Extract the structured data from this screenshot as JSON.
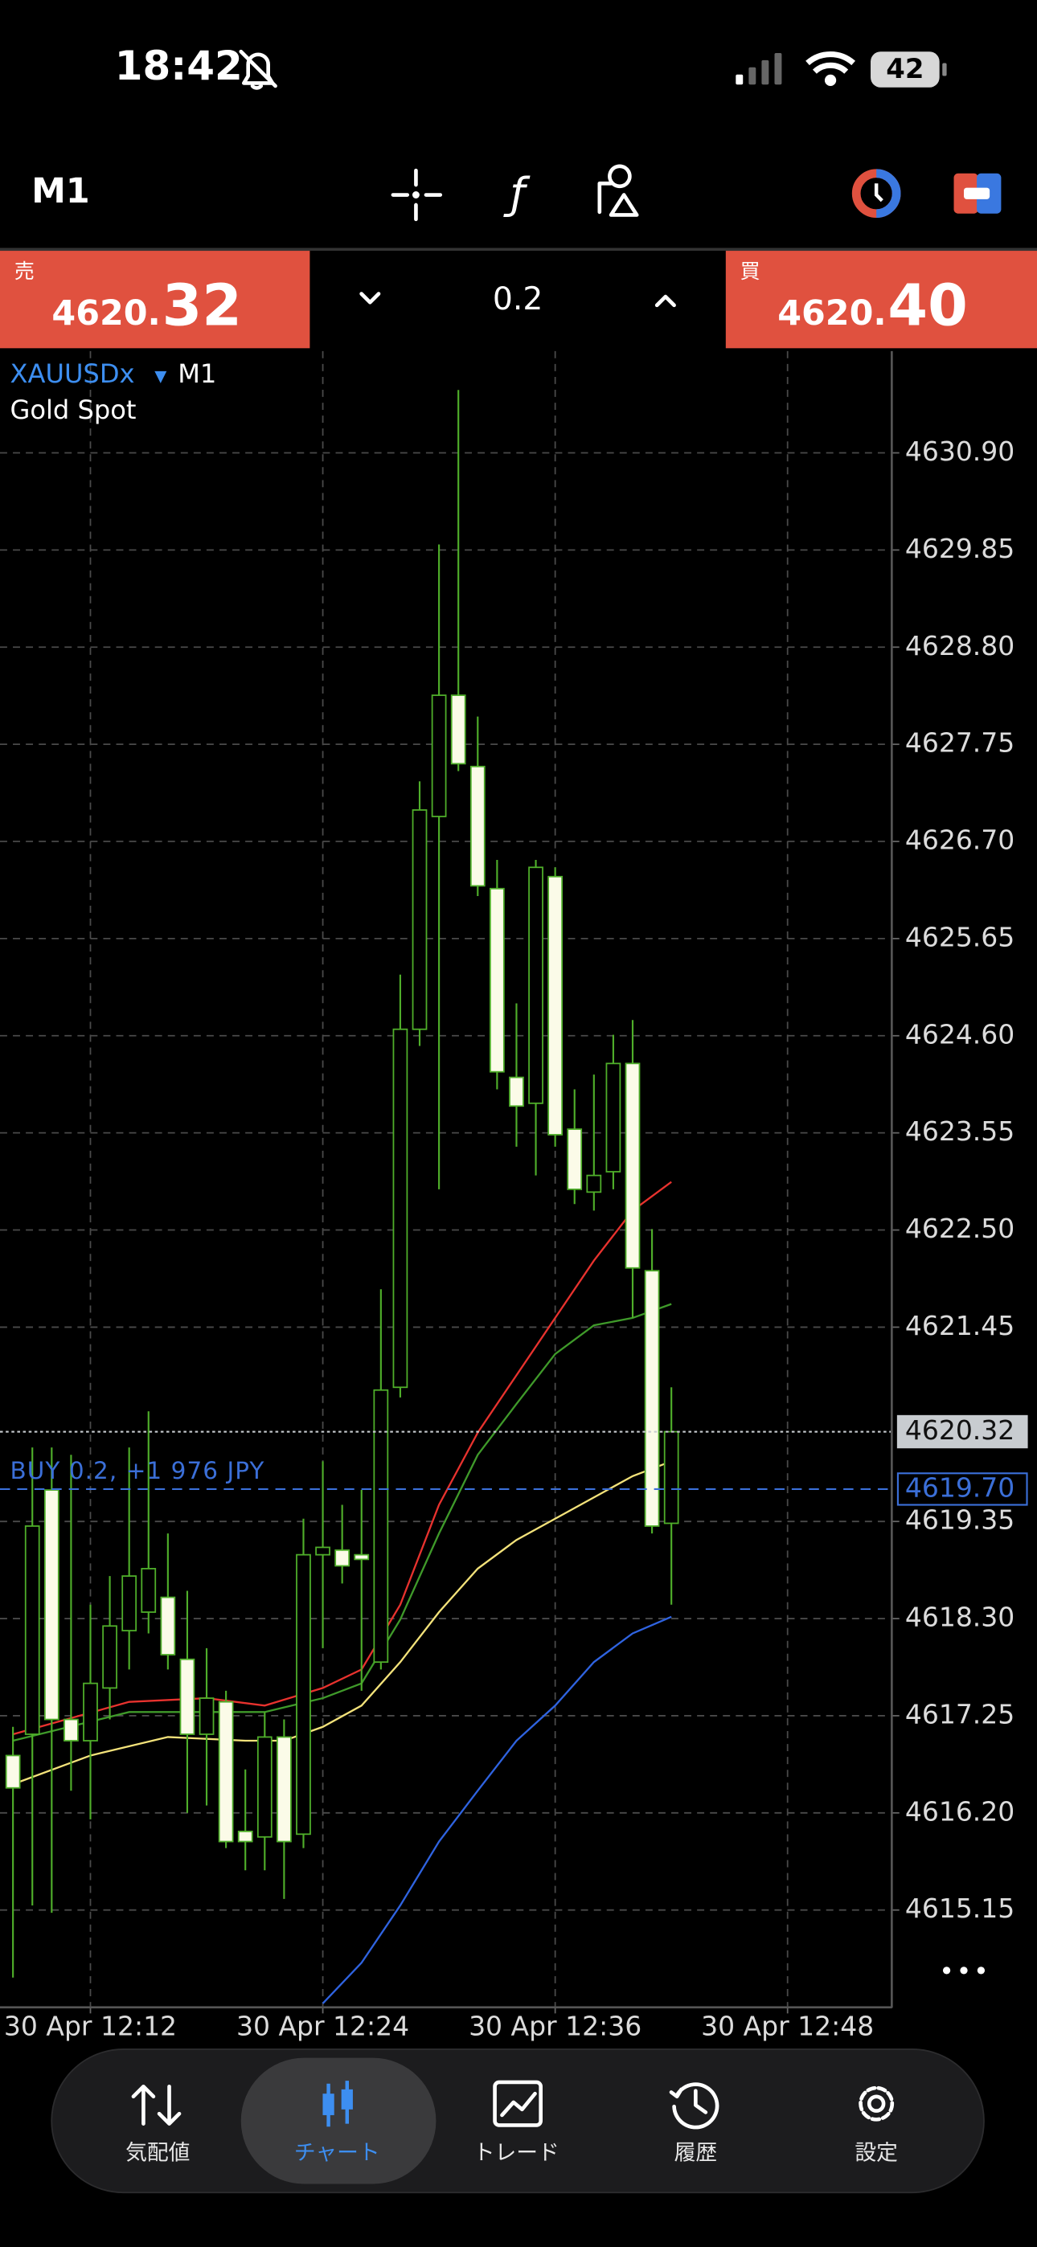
{
  "status_bar": {
    "time": "18:42",
    "battery": "42"
  },
  "toolbar": {
    "timeframe": "M1"
  },
  "trade_panel": {
    "sell_label": "売",
    "sell_price_main": "4620.",
    "sell_price_big": "32",
    "volume": "0.2",
    "buy_label": "買",
    "buy_price_main": "4620.",
    "buy_price_big": "40"
  },
  "chart_data": {
    "type": "candlestick",
    "symbol": "XAUUSDx",
    "timeframe": "M1",
    "description": "Gold Spot",
    "x": [
      8,
      9,
      10,
      11,
      12,
      13,
      14,
      15,
      16,
      17,
      18,
      19,
      20,
      21,
      22,
      23,
      24,
      25,
      26,
      27,
      28,
      29,
      30,
      31,
      32,
      33,
      34,
      35,
      36,
      37,
      38,
      39,
      40,
      41,
      42
    ],
    "open": [
      4616.82,
      4617.05,
      4619.69,
      4617.21,
      4616.98,
      4617.55,
      4618.17,
      4618.37,
      4618.53,
      4617.86,
      4617.05,
      4617.4,
      4616.0,
      4615.94,
      4617.02,
      4615.97,
      4618.99,
      4619.04,
      4618.99,
      4617.83,
      4620.8,
      4624.67,
      4626.97,
      4628.28,
      4627.51,
      4626.19,
      4624.15,
      4623.87,
      4626.32,
      4623.59,
      4622.91,
      4623.13,
      4624.3,
      4622.06,
      4619.33
    ],
    "high": [
      4617.13,
      4620.15,
      4620.15,
      4620.07,
      4618.45,
      4618.76,
      4620.15,
      4620.54,
      4619.22,
      4618.6,
      4617.98,
      4617.52,
      4616.67,
      4617.29,
      4617.21,
      4619.38,
      4620.0,
      4619.53,
      4619.69,
      4621.86,
      4625.26,
      4627.35,
      4629.91,
      4631.58,
      4628.05,
      4626.5,
      4624.95,
      4626.5,
      4626.42,
      4624.02,
      4624.18,
      4624.61,
      4624.77,
      4622.51,
      4620.8
    ],
    "low": [
      4614.42,
      4615.2,
      4615.12,
      4616.44,
      4616.13,
      4617.21,
      4617.75,
      4618.14,
      4617.75,
      4616.2,
      4616.28,
      4615.82,
      4615.58,
      4615.58,
      4615.27,
      4615.82,
      4617.98,
      4618.68,
      4617.52,
      4617.75,
      4620.69,
      4624.49,
      4622.94,
      4627.46,
      4626.11,
      4624.02,
      4623.4,
      4623.09,
      4623.4,
      4622.78,
      4622.71,
      4622.94,
      4621.55,
      4619.22,
      4618.45
    ],
    "close": [
      4616.47,
      4619.3,
      4617.21,
      4616.98,
      4617.6,
      4618.22,
      4618.76,
      4618.84,
      4617.91,
      4617.05,
      4617.44,
      4615.89,
      4615.89,
      4617.02,
      4615.89,
      4618.99,
      4619.07,
      4618.87,
      4618.94,
      4620.77,
      4624.67,
      4627.04,
      4628.28,
      4627.54,
      4626.22,
      4624.21,
      4623.84,
      4626.42,
      4623.53,
      4622.94,
      4623.09,
      4624.3,
      4622.09,
      4619.3,
      4620.32
    ],
    "wick_color": "#4fae2a",
    "bull_fill": "#000000",
    "bear_fill": "#fbfbe8",
    "series": [
      {
        "color": "#e8322e",
        "x": [
          8,
          14,
          18,
          21,
          24,
          26,
          28,
          30,
          32,
          34,
          36,
          38,
          40,
          42
        ],
        "values": [
          4617.05,
          4617.4,
          4617.44,
          4617.36,
          4617.55,
          4617.75,
          4618.45,
          4619.53,
          4620.31,
          4620.93,
          4621.55,
          4622.17,
          4622.71,
          4623.02
        ]
      },
      {
        "color": "#3f9a2a",
        "x": [
          8,
          14,
          18,
          21,
          24,
          26,
          28,
          30,
          32,
          34,
          36,
          38,
          40,
          42
        ],
        "values": [
          4616.98,
          4617.29,
          4617.29,
          4617.29,
          4617.44,
          4617.6,
          4618.29,
          4619.22,
          4620.07,
          4620.62,
          4621.16,
          4621.47,
          4621.55,
          4621.7
        ]
      },
      {
        "color": "#f3e27a",
        "x": [
          8,
          12,
          16,
          20,
          22,
          24,
          26,
          28,
          30,
          32,
          34,
          36,
          38,
          40,
          42
        ],
        "values": [
          4616.51,
          4616.82,
          4617.02,
          4616.98,
          4616.98,
          4617.13,
          4617.36,
          4617.83,
          4618.37,
          4618.84,
          4619.15,
          4619.38,
          4619.61,
          4619.84,
          4620.0
        ]
      },
      {
        "color": "#2f63e0",
        "x": [
          24,
          26,
          28,
          30,
          32,
          34,
          36,
          38,
          40,
          42
        ],
        "values": [
          4614.14,
          4614.58,
          4615.2,
          4615.89,
          4616.44,
          4616.98,
          4617.36,
          4617.83,
          4618.14,
          4618.32
        ]
      }
    ],
    "price_lines": [
      {
        "value": 4620.32,
        "label": "4620.32",
        "color": "#c8ccd0"
      },
      {
        "value": 4619.7,
        "label": "4619.70",
        "text": "BUY 0.2, +1 976 JPY",
        "color": "#3b6fd8"
      }
    ],
    "xlim": [
      7.33,
      53.4
    ],
    "ylim": [
      4614.11,
      4632.0
    ],
    "xticks": [
      {
        "value": 12,
        "label": "30 Apr 12:12"
      },
      {
        "value": 24,
        "label": "30 Apr 12:24"
      },
      {
        "value": 36,
        "label": "30 Apr 12:36"
      },
      {
        "value": 48,
        "label": "30 Apr 12:48"
      }
    ],
    "yticks": [
      {
        "value": 4630.9,
        "label": "4630.90"
      },
      {
        "value": 4629.85,
        "label": "4629.85"
      },
      {
        "value": 4628.8,
        "label": "4628.80"
      },
      {
        "value": 4627.75,
        "label": "4627.75"
      },
      {
        "value": 4626.7,
        "label": "4626.70"
      },
      {
        "value": 4625.65,
        "label": "4625.65"
      },
      {
        "value": 4624.6,
        "label": "4624.60"
      },
      {
        "value": 4623.55,
        "label": "4623.55"
      },
      {
        "value": 4622.5,
        "label": "4622.50"
      },
      {
        "value": 4621.45,
        "label": "4621.45"
      },
      {
        "value": 4619.35,
        "label": "4619.35"
      },
      {
        "value": 4618.3,
        "label": "4618.30"
      },
      {
        "value": 4617.25,
        "label": "4617.25"
      },
      {
        "value": 4616.2,
        "label": "4616.20"
      },
      {
        "value": 4615.15,
        "label": "4615.15"
      }
    ],
    "grid": true
  },
  "bottom_nav": [
    {
      "label": "気配値"
    },
    {
      "label": "チャート"
    },
    {
      "label": "トレード"
    },
    {
      "label": "履歴"
    },
    {
      "label": "設定"
    }
  ]
}
